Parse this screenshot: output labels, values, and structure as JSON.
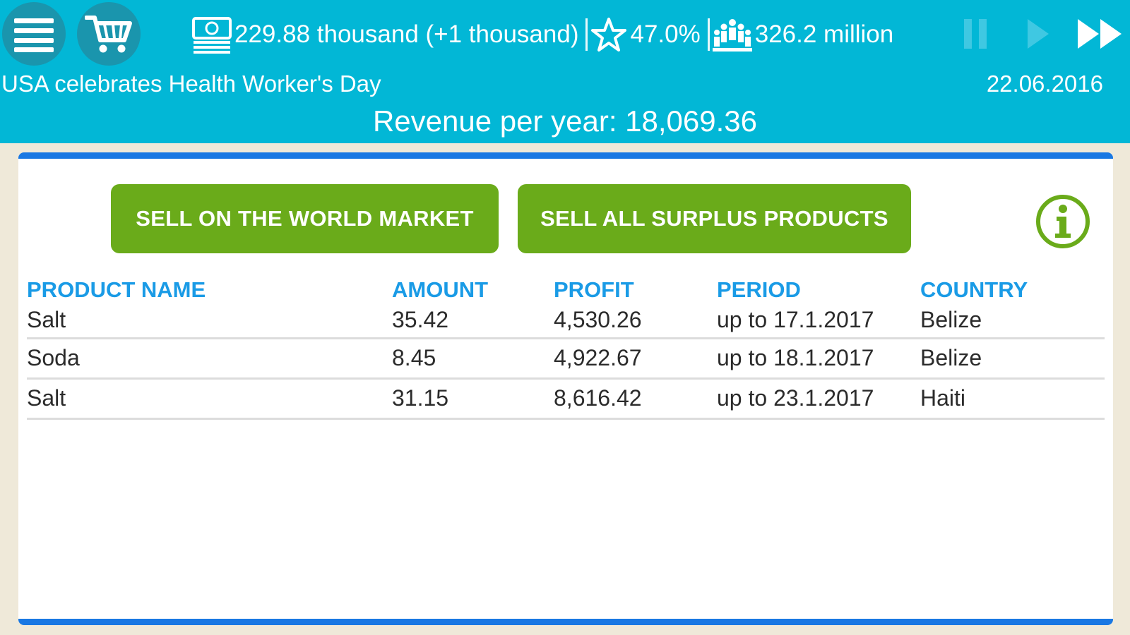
{
  "top_bar": {
    "money": "229.88 thousand (+1 thousand)",
    "approval": "47.0%",
    "population": "326.2 million",
    "icons": [
      "menu-icon",
      "cart-icon",
      "money-icon",
      "star-icon",
      "population-icon",
      "pause-icon",
      "play-icon",
      "fast-forward-icon"
    ]
  },
  "news": "USA celebrates Health Worker's Day",
  "date": "22.06.2016",
  "revenue": "Revenue per year: 18,069.36",
  "buttons": {
    "sell_world": "SELL ON THE WORLD MARKET",
    "sell_surplus": "SELL ALL SURPLUS PRODUCTS"
  },
  "table": {
    "headers": [
      "PRODUCT NAME",
      "AMOUNT",
      "PROFIT",
      "PERIOD",
      "COUNTRY"
    ],
    "rows": [
      [
        "Salt",
        "35.42",
        "4,530.26",
        "up to 17.1.2017",
        "Belize"
      ],
      [
        "Soda",
        "8.45",
        "4,922.67",
        "up to 18.1.2017",
        "Belize"
      ],
      [
        "Salt",
        "31.15",
        "8,616.42",
        "up to 23.1.2017",
        "Haiti"
      ]
    ]
  },
  "colors": {
    "top_bar": "#02b7d6",
    "button_green": "#6aab1a",
    "header_blue": "#1a9be6",
    "panel_border": "#1978e3",
    "background": "#efe9d9"
  }
}
